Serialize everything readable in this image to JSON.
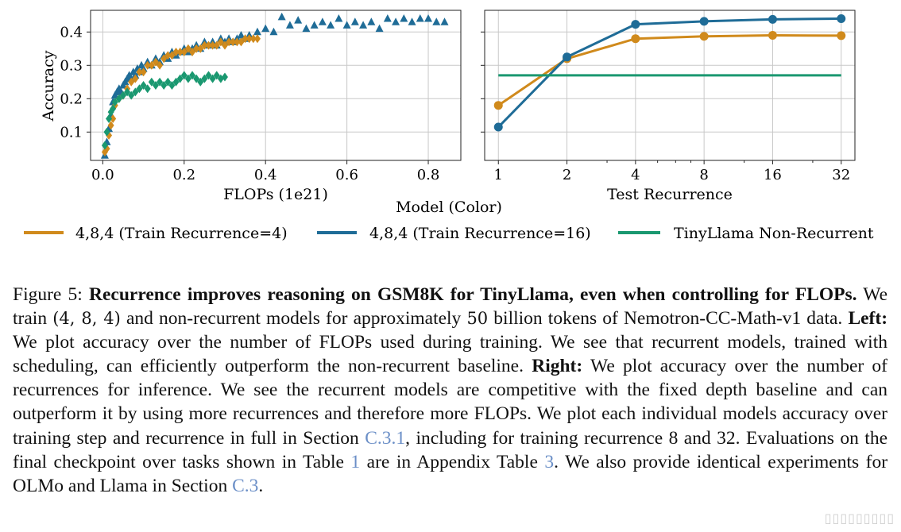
{
  "chart_data": [
    {
      "type": "scatter",
      "panel": "left",
      "xlabel": "FLOPs (1e21)",
      "ylabel": "Accuracy",
      "xlim": [
        -0.03,
        0.88
      ],
      "ylim": [
        0.015,
        0.465
      ],
      "xticks": [
        0.0,
        0.2,
        0.4,
        0.6,
        0.8
      ],
      "xtick_labels": [
        "0.0",
        "0.2",
        "0.4",
        "0.6",
        "0.8"
      ],
      "yticks": [
        0.1,
        0.2,
        0.3,
        0.4
      ],
      "ytick_labels": [
        "0.1",
        "0.2",
        "0.3",
        "0.4"
      ],
      "grid": true,
      "series": [
        {
          "name": "4,8,4 (Train Recurrence=16)",
          "color": "#1f6c97",
          "marker": "triangle",
          "x": [
            0.005,
            0.01,
            0.015,
            0.02,
            0.025,
            0.03,
            0.035,
            0.04,
            0.045,
            0.05,
            0.055,
            0.06,
            0.065,
            0.07,
            0.075,
            0.08,
            0.085,
            0.09,
            0.095,
            0.1,
            0.11,
            0.12,
            0.13,
            0.14,
            0.15,
            0.16,
            0.17,
            0.18,
            0.19,
            0.2,
            0.21,
            0.22,
            0.23,
            0.24,
            0.25,
            0.26,
            0.27,
            0.28,
            0.29,
            0.3,
            0.31,
            0.32,
            0.33,
            0.34,
            0.35,
            0.36,
            0.38,
            0.4,
            0.42,
            0.44,
            0.46,
            0.48,
            0.5,
            0.52,
            0.54,
            0.56,
            0.58,
            0.6,
            0.62,
            0.64,
            0.66,
            0.68,
            0.7,
            0.72,
            0.74,
            0.76,
            0.78,
            0.8,
            0.82,
            0.84
          ],
          "y": [
            0.03,
            0.07,
            0.11,
            0.15,
            0.19,
            0.21,
            0.22,
            0.23,
            0.22,
            0.24,
            0.25,
            0.26,
            0.27,
            0.26,
            0.28,
            0.27,
            0.29,
            0.28,
            0.3,
            0.29,
            0.31,
            0.3,
            0.32,
            0.31,
            0.33,
            0.32,
            0.34,
            0.33,
            0.34,
            0.35,
            0.34,
            0.35,
            0.36,
            0.35,
            0.37,
            0.36,
            0.37,
            0.36,
            0.38,
            0.37,
            0.38,
            0.37,
            0.38,
            0.39,
            0.38,
            0.39,
            0.4,
            0.41,
            0.4,
            0.445,
            0.42,
            0.435,
            0.41,
            0.42,
            0.43,
            0.42,
            0.44,
            0.42,
            0.43,
            0.42,
            0.43,
            0.41,
            0.44,
            0.43,
            0.44,
            0.43,
            0.44,
            0.44,
            0.43,
            0.43
          ]
        },
        {
          "name": "4,8,4 (Train Recurrence=4)",
          "color": "#d08a1c",
          "marker": "diamond",
          "x": [
            0.005,
            0.01,
            0.015,
            0.02,
            0.025,
            0.03,
            0.04,
            0.05,
            0.06,
            0.07,
            0.08,
            0.09,
            0.1,
            0.11,
            0.12,
            0.13,
            0.14,
            0.15,
            0.16,
            0.17,
            0.18,
            0.19,
            0.2,
            0.21,
            0.22,
            0.23,
            0.24,
            0.25,
            0.26,
            0.27,
            0.28,
            0.29,
            0.3,
            0.31,
            0.32,
            0.33,
            0.34,
            0.35,
            0.36,
            0.37,
            0.38
          ],
          "y": [
            0.04,
            0.05,
            0.09,
            0.12,
            0.14,
            0.18,
            0.2,
            0.21,
            0.23,
            0.25,
            0.26,
            0.28,
            0.28,
            0.3,
            0.3,
            0.31,
            0.3,
            0.32,
            0.33,
            0.33,
            0.34,
            0.34,
            0.34,
            0.35,
            0.34,
            0.35,
            0.35,
            0.36,
            0.36,
            0.36,
            0.36,
            0.37,
            0.36,
            0.37,
            0.37,
            0.37,
            0.37,
            0.38,
            0.38,
            0.38,
            0.38
          ]
        },
        {
          "name": "TinyLlama Non-Recurrent",
          "color": "#1a9870",
          "marker": "diamond",
          "x": [
            0.005,
            0.01,
            0.015,
            0.02,
            0.025,
            0.03,
            0.04,
            0.05,
            0.06,
            0.07,
            0.08,
            0.09,
            0.1,
            0.11,
            0.12,
            0.13,
            0.14,
            0.15,
            0.16,
            0.17,
            0.18,
            0.19,
            0.2,
            0.21,
            0.22,
            0.23,
            0.24,
            0.25,
            0.26,
            0.27,
            0.28,
            0.29,
            0.3
          ],
          "y": [
            0.06,
            0.1,
            0.14,
            0.16,
            0.17,
            0.19,
            0.2,
            0.21,
            0.22,
            0.21,
            0.22,
            0.23,
            0.24,
            0.23,
            0.25,
            0.24,
            0.25,
            0.24,
            0.25,
            0.24,
            0.25,
            0.26,
            0.27,
            0.26,
            0.27,
            0.26,
            0.25,
            0.26,
            0.27,
            0.26,
            0.27,
            0.26,
            0.265
          ]
        }
      ]
    },
    {
      "type": "line",
      "panel": "right",
      "xlabel": "Test Recurrence",
      "ylabel": "",
      "xscale": "log2",
      "categories": [
        "1",
        "2",
        "4",
        "8",
        "16",
        "32"
      ],
      "x": [
        1,
        2,
        4,
        8,
        16,
        32
      ],
      "ylim": [
        0.015,
        0.465
      ],
      "grid": true,
      "series": [
        {
          "name": "4,8,4 (Train Recurrence=4)",
          "color": "#d08a1c",
          "values": [
            0.18,
            0.32,
            0.38,
            0.387,
            0.39,
            0.389
          ]
        },
        {
          "name": "4,8,4 (Train Recurrence=16)",
          "color": "#1f6c97",
          "values": [
            0.115,
            0.325,
            0.423,
            0.432,
            0.438,
            0.44
          ]
        },
        {
          "name": "TinyLlama Non-Recurrent",
          "color": "#1a9870",
          "values": [
            0.27,
            0.27,
            0.27,
            0.27,
            0.27,
            0.27
          ],
          "markers": false
        }
      ]
    }
  ],
  "legend": {
    "title": "Model (Color)",
    "items": [
      {
        "label": "4,8,4 (Train Recurrence=4)",
        "color": "#d08a1c"
      },
      {
        "label": "4,8,4 (Train Recurrence=16)",
        "color": "#1f6c97"
      },
      {
        "label": "TinyLlama Non-Recurrent",
        "color": "#1a9870"
      }
    ]
  },
  "caption": {
    "label": "Figure 5:",
    "title": "Recurrence improves reasoning on GSM8K for TinyLlama, even when controlling for FLOPs.",
    "t1": "We train",
    "math_config": "(4, 8, 4)",
    "t2": "and non-recurrent models for approximately",
    "math_50": "50",
    "t3": "billion tokens of Nemotron-CC-Math-v1 data.",
    "left_label": "Left:",
    "left_text": "We plot accuracy over the number of FLOPs used during training. We see that recurrent models, trained with scheduling, can efficiently outperform the non-recurrent baseline.",
    "right_label": "Right:",
    "right_text": "We plot accuracy over the number of recurrences for inference. We see the recurrent models are competitive with the fixed depth baseline and can outperform it by using more recurrences and therefore more FLOPs. We plot each individual models accuracy over training step and recurrence in full in Section",
    "ref_section": "C.3.1",
    "t4": ", including for training recurrence 8 and 32. Evaluations on the final checkpoint over tasks shown in Table",
    "ref_table1": "1",
    "t5": "are in Appendix Table",
    "ref_table3": "3",
    "t6": ". We also provide identical experiments for OLMo and Llama in Section",
    "ref_c3": "C.3",
    "t7": "."
  }
}
